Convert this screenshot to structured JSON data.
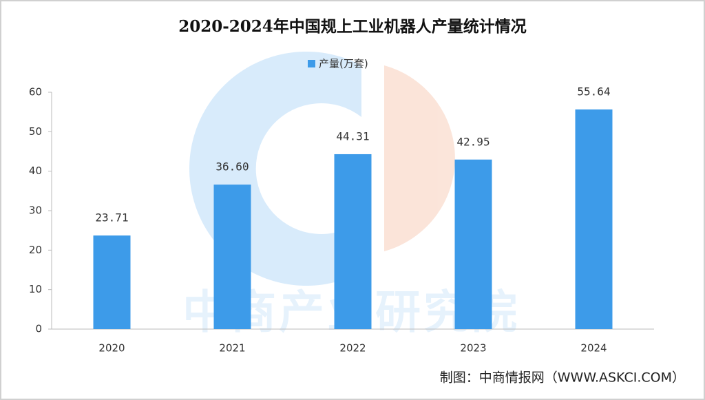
{
  "chart_data": {
    "type": "bar",
    "title": "2020-2024年中国规上工业机器人产量统计情况",
    "categories": [
      "2020",
      "2021",
      "2022",
      "2023",
      "2024"
    ],
    "series": [
      {
        "name": "产量(万套)",
        "color": "#3d9be9",
        "values": [
          23.71,
          36.6,
          44.31,
          42.95,
          55.64
        ],
        "value_labels": [
          "23.71",
          "36.60",
          "44.31",
          "42.95",
          "55.64"
        ]
      }
    ],
    "ylim": [
      0,
      60
    ],
    "yticks": [
      0,
      10,
      20,
      30,
      40,
      50,
      60
    ],
    "grid": false,
    "legend": "top",
    "watermark": "中商产业研究院",
    "source": "制图：中商情报网（WWW.ASKCI.COM）"
  }
}
